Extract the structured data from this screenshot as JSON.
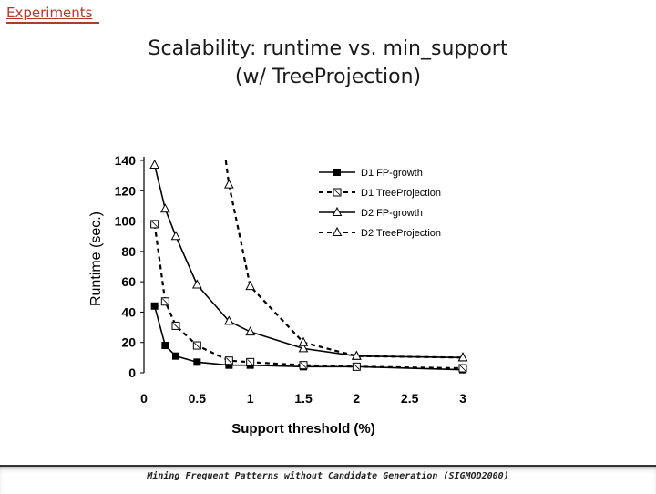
{
  "header": {
    "section": "Experiments"
  },
  "title": {
    "line1": "Scalability: runtime vs. min_support",
    "line2": "(w/ TreeProjection)"
  },
  "footer": {
    "text": "Mining Frequent Patterns without Candidate Generation (SIGMOD2000)"
  },
  "chart_data": {
    "type": "line",
    "xlabel": "Support threshold (%)",
    "ylabel": "Runtime (sec.)",
    "xlim": [
      0,
      3
    ],
    "ylim": [
      0,
      140
    ],
    "x_ticks": [
      "0",
      "0.5",
      "1",
      "1.5",
      "2",
      "2.5",
      "3"
    ],
    "y_ticks": [
      "0",
      "20",
      "40",
      "60",
      "80",
      "100",
      "120",
      "140"
    ],
    "grid": false,
    "legend_position": "top-right",
    "series": [
      {
        "name": "D1 FP-growth",
        "line": "solid",
        "marker": "filled-square",
        "color": "#000000",
        "x": [
          0.1,
          0.2,
          0.3,
          0.5,
          0.8,
          1.0,
          1.5,
          2.0,
          3.0
        ],
        "y": [
          44,
          18,
          11,
          7,
          5,
          5,
          4,
          4,
          2
        ]
      },
      {
        "name": "D1 TreeProjection",
        "line": "dashed",
        "marker": "open-square",
        "color": "#000000",
        "x": [
          0.1,
          0.2,
          0.3,
          0.5,
          0.8,
          1.0,
          1.5,
          2.0,
          3.0
        ],
        "y": [
          98,
          47,
          31,
          18,
          8,
          7,
          5,
          4,
          3
        ]
      },
      {
        "name": "D2 FP-growth",
        "line": "solid",
        "marker": "open-triangle",
        "color": "#000000",
        "x": [
          0.1,
          0.2,
          0.3,
          0.5,
          0.8,
          1.0,
          1.5,
          2.0,
          3.0
        ],
        "y": [
          137,
          108,
          90,
          58,
          34,
          27,
          16,
          11,
          10
        ]
      },
      {
        "name": "D2 TreeProjection",
        "line": "dashed",
        "marker": "open-triangle",
        "color": "#000000",
        "x": [
          0.77,
          0.8,
          1.0,
          1.5,
          2.0,
          3.0
        ],
        "y": [
          140,
          124,
          57,
          20,
          11,
          10
        ]
      }
    ]
  }
}
